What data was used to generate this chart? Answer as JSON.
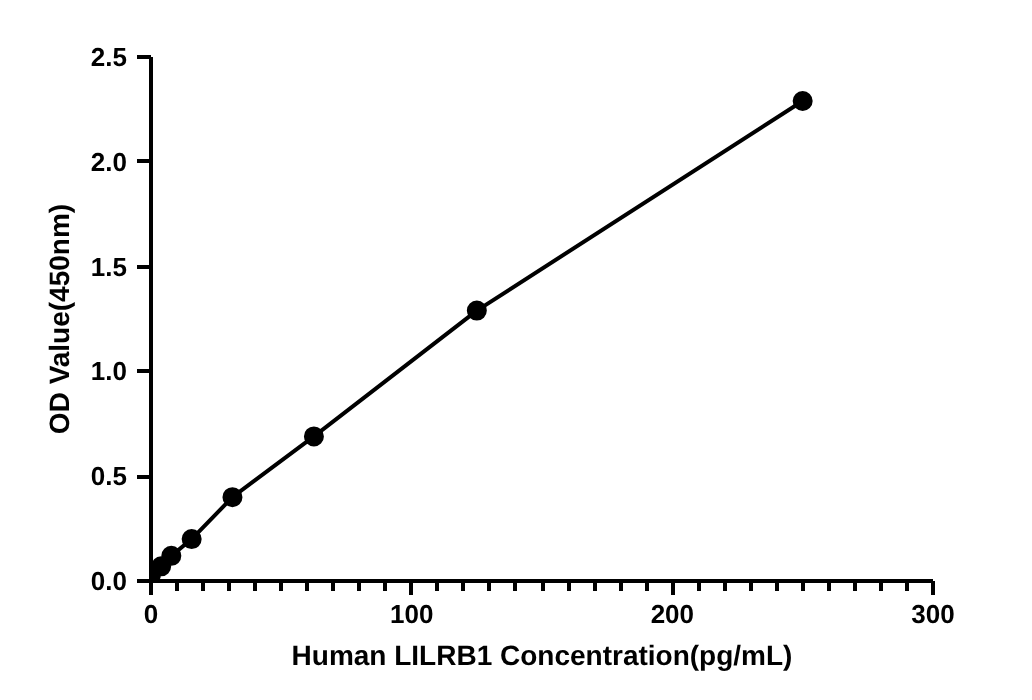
{
  "chart_data": {
    "type": "line",
    "xlabel": "Human LILRB1 Concentration(pg/mL)",
    "ylabel": "OD Value(450nm)",
    "x": [
      0,
      3.9,
      7.8,
      15.6,
      31.25,
      62.5,
      125,
      250
    ],
    "series": [
      {
        "color": "#000000",
        "values": [
          0.03,
          0.07,
          0.12,
          0.2,
          0.4,
          0.69,
          1.29,
          2.29
        ]
      }
    ],
    "marker": "circle",
    "line_style": "solid",
    "grid": false,
    "xlim": [
      0,
      300
    ],
    "ylim": [
      0,
      2.5
    ],
    "xticks": [
      0,
      {
        "value": 10,
        "label": null
      },
      {
        "value": 20,
        "label": null
      },
      {
        "value": 30,
        "label": null
      },
      {
        "value": 40,
        "label": null
      },
      {
        "value": 50,
        "label": null
      },
      {
        "value": 60,
        "label": null
      },
      {
        "value": 70,
        "label": null
      },
      {
        "value": 80,
        "label": null
      },
      {
        "value": 90,
        "label": null
      },
      100,
      {
        "value": 110,
        "label": null
      },
      {
        "value": 120,
        "label": null
      },
      {
        "value": 130,
        "label": null
      },
      {
        "value": 140,
        "label": null
      },
      {
        "value": 150,
        "label": null
      },
      {
        "value": 160,
        "label": null
      },
      {
        "value": 170,
        "label": null
      },
      {
        "value": 180,
        "label": null
      },
      {
        "value": 190,
        "label": null
      },
      200,
      {
        "value": 210,
        "label": null
      },
      {
        "value": 220,
        "label": null
      },
      {
        "value": 230,
        "label": null
      },
      {
        "value": 240,
        "label": null
      },
      {
        "value": 250,
        "label": null
      },
      {
        "value": 260,
        "label": null
      },
      {
        "value": 270,
        "label": null
      },
      {
        "value": 280,
        "label": null
      },
      {
        "value": 290,
        "label": null
      },
      300
    ],
    "yticks": [
      {
        "value": 0,
        "label": "0.0"
      },
      0.5,
      {
        "value": 1,
        "label": "1.0"
      },
      1.5,
      {
        "value": 2,
        "label": "2.0"
      },
      2.5
    ]
  }
}
